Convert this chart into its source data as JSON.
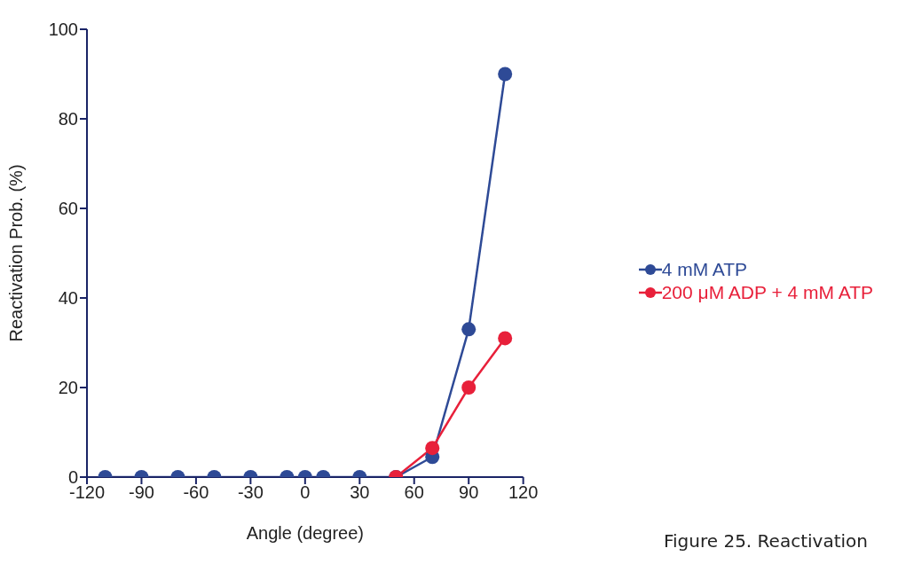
{
  "chart_data": {
    "type": "line",
    "xlabel": "Angle (degree)",
    "ylabel": "Reactivation Prob. (%)",
    "x": [
      -110,
      -90,
      -70,
      -50,
      -30,
      -10,
      0,
      10,
      30,
      50,
      70,
      90,
      110
    ],
    "series": [
      {
        "name": "4 mM ATP",
        "color": "#2e4a96",
        "values": [
          0,
          0,
          0,
          0,
          0,
          0,
          0,
          0,
          0,
          0,
          4.5,
          33,
          90
        ]
      },
      {
        "name": "200 μM ADP + 4 mM ATP",
        "color": "#e8203a",
        "values": [
          null,
          null,
          null,
          null,
          null,
          null,
          null,
          null,
          null,
          0,
          6.5,
          20,
          31
        ]
      }
    ],
    "xlim": [
      -120,
      120
    ],
    "xticks": [
      -120,
      -90,
      -60,
      -30,
      0,
      30,
      60,
      90,
      120
    ],
    "ylim": [
      0,
      100
    ],
    "yticks": [
      0,
      20,
      40,
      60,
      80,
      100
    ],
    "grid": false,
    "legend": "right",
    "marker": "circle",
    "line_style": "solid",
    "annotations": [
      "Figure 25. Reactivation"
    ]
  }
}
